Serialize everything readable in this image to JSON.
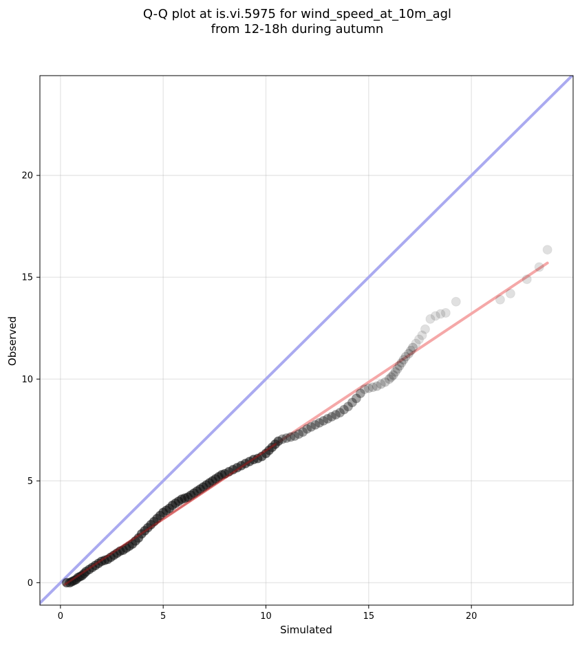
{
  "chart_data": {
    "type": "scatter",
    "title_lines": [
      "Q-Q plot at is.vi.5975 for wind_speed_at_10m_agl",
      "from 12-18h during autumn"
    ],
    "xlabel": "Simulated",
    "ylabel": "Observed",
    "xlim": [
      -1.0,
      24.95
    ],
    "ylim": [
      -1.1,
      24.9
    ],
    "xticks": [
      0,
      5,
      10,
      15,
      20
    ],
    "yticks": [
      0,
      5,
      10,
      15,
      20
    ],
    "xtick_labels": [
      "0",
      "5",
      "10",
      "15",
      "20"
    ],
    "ytick_labels": [
      "0",
      "5",
      "10",
      "15",
      "20"
    ],
    "grid": true,
    "identity_line_color": "#aaaaf0",
    "fit_line_color": "#f5a8a8",
    "fit_line_dark_color": "#b32020",
    "point_color": "#111111",
    "identity_line": {
      "from": [
        -1.1,
        -1.1
      ],
      "to": [
        24.95,
        24.95
      ]
    },
    "fit_line": {
      "from": [
        0.2,
        -0.1
      ],
      "to": [
        23.7,
        15.7
      ]
    },
    "points": [
      [
        0.3,
        0.0
      ],
      [
        0.45,
        0.0
      ],
      [
        0.55,
        0.05
      ],
      [
        0.65,
        0.1
      ],
      [
        0.75,
        0.15
      ],
      [
        0.85,
        0.25
      ],
      [
        0.95,
        0.3
      ],
      [
        1.05,
        0.35
      ],
      [
        1.15,
        0.45
      ],
      [
        1.25,
        0.55
      ],
      [
        1.4,
        0.65
      ],
      [
        1.55,
        0.75
      ],
      [
        1.7,
        0.85
      ],
      [
        1.85,
        0.95
      ],
      [
        2.0,
        1.05
      ],
      [
        2.15,
        1.1
      ],
      [
        2.3,
        1.15
      ],
      [
        2.45,
        1.25
      ],
      [
        2.6,
        1.35
      ],
      [
        2.75,
        1.45
      ],
      [
        2.9,
        1.55
      ],
      [
        3.05,
        1.6
      ],
      [
        3.2,
        1.7
      ],
      [
        3.35,
        1.8
      ],
      [
        3.5,
        1.9
      ],
      [
        3.65,
        2.05
      ],
      [
        3.8,
        2.2
      ],
      [
        3.95,
        2.4
      ],
      [
        4.1,
        2.55
      ],
      [
        4.25,
        2.7
      ],
      [
        4.4,
        2.85
      ],
      [
        4.55,
        3.0
      ],
      [
        4.7,
        3.15
      ],
      [
        4.85,
        3.3
      ],
      [
        5.0,
        3.45
      ],
      [
        5.15,
        3.55
      ],
      [
        5.3,
        3.65
      ],
      [
        5.45,
        3.8
      ],
      [
        5.6,
        3.9
      ],
      [
        5.75,
        4.0
      ],
      [
        5.9,
        4.1
      ],
      [
        6.05,
        4.15
      ],
      [
        6.2,
        4.2
      ],
      [
        6.35,
        4.3
      ],
      [
        6.5,
        4.4
      ],
      [
        6.65,
        4.5
      ],
      [
        6.8,
        4.6
      ],
      [
        6.95,
        4.7
      ],
      [
        7.1,
        4.8
      ],
      [
        7.25,
        4.9
      ],
      [
        7.4,
        5.0
      ],
      [
        7.55,
        5.1
      ],
      [
        7.7,
        5.2
      ],
      [
        7.85,
        5.3
      ],
      [
        8.0,
        5.35
      ],
      [
        8.2,
        5.45
      ],
      [
        8.4,
        5.55
      ],
      [
        8.6,
        5.65
      ],
      [
        8.8,
        5.75
      ],
      [
        9.0,
        5.85
      ],
      [
        9.2,
        5.95
      ],
      [
        9.4,
        6.05
      ],
      [
        9.6,
        6.1
      ],
      [
        9.8,
        6.2
      ],
      [
        10.0,
        6.35
      ],
      [
        10.15,
        6.5
      ],
      [
        10.3,
        6.65
      ],
      [
        10.45,
        6.8
      ],
      [
        10.6,
        6.95
      ],
      [
        10.8,
        7.05
      ],
      [
        11.0,
        7.1
      ],
      [
        11.2,
        7.15
      ],
      [
        11.4,
        7.2
      ],
      [
        11.6,
        7.3
      ],
      [
        11.8,
        7.4
      ],
      [
        12.0,
        7.55
      ],
      [
        12.2,
        7.65
      ],
      [
        12.4,
        7.75
      ],
      [
        12.6,
        7.85
      ],
      [
        12.8,
        7.95
      ],
      [
        13.0,
        8.05
      ],
      [
        13.2,
        8.15
      ],
      [
        13.4,
        8.25
      ],
      [
        13.6,
        8.35
      ],
      [
        13.8,
        8.5
      ],
      [
        14.0,
        8.65
      ],
      [
        14.2,
        8.85
      ],
      [
        14.4,
        9.05
      ],
      [
        14.6,
        9.3
      ],
      [
        14.8,
        9.5
      ],
      [
        15.0,
        9.55
      ],
      [
        15.2,
        9.6
      ],
      [
        15.4,
        9.65
      ],
      [
        15.6,
        9.75
      ],
      [
        15.8,
        9.85
      ],
      [
        16.0,
        10.0
      ],
      [
        16.1,
        10.1
      ],
      [
        16.2,
        10.2
      ],
      [
        16.3,
        10.35
      ],
      [
        16.4,
        10.5
      ],
      [
        16.5,
        10.65
      ],
      [
        16.6,
        10.8
      ],
      [
        16.7,
        10.95
      ],
      [
        16.8,
        11.1
      ],
      [
        16.95,
        11.25
      ],
      [
        17.05,
        11.4
      ],
      [
        17.15,
        11.55
      ],
      [
        17.3,
        11.75
      ],
      [
        17.45,
        11.95
      ],
      [
        17.6,
        12.15
      ],
      [
        17.75,
        12.45
      ],
      [
        18.0,
        12.95
      ],
      [
        18.25,
        13.1
      ],
      [
        18.5,
        13.2
      ],
      [
        18.75,
        13.25
      ],
      [
        19.25,
        13.8
      ],
      [
        21.4,
        13.9
      ],
      [
        21.9,
        14.2
      ],
      [
        22.7,
        14.9
      ],
      [
        23.3,
        15.5
      ],
      [
        23.7,
        16.35
      ]
    ]
  }
}
